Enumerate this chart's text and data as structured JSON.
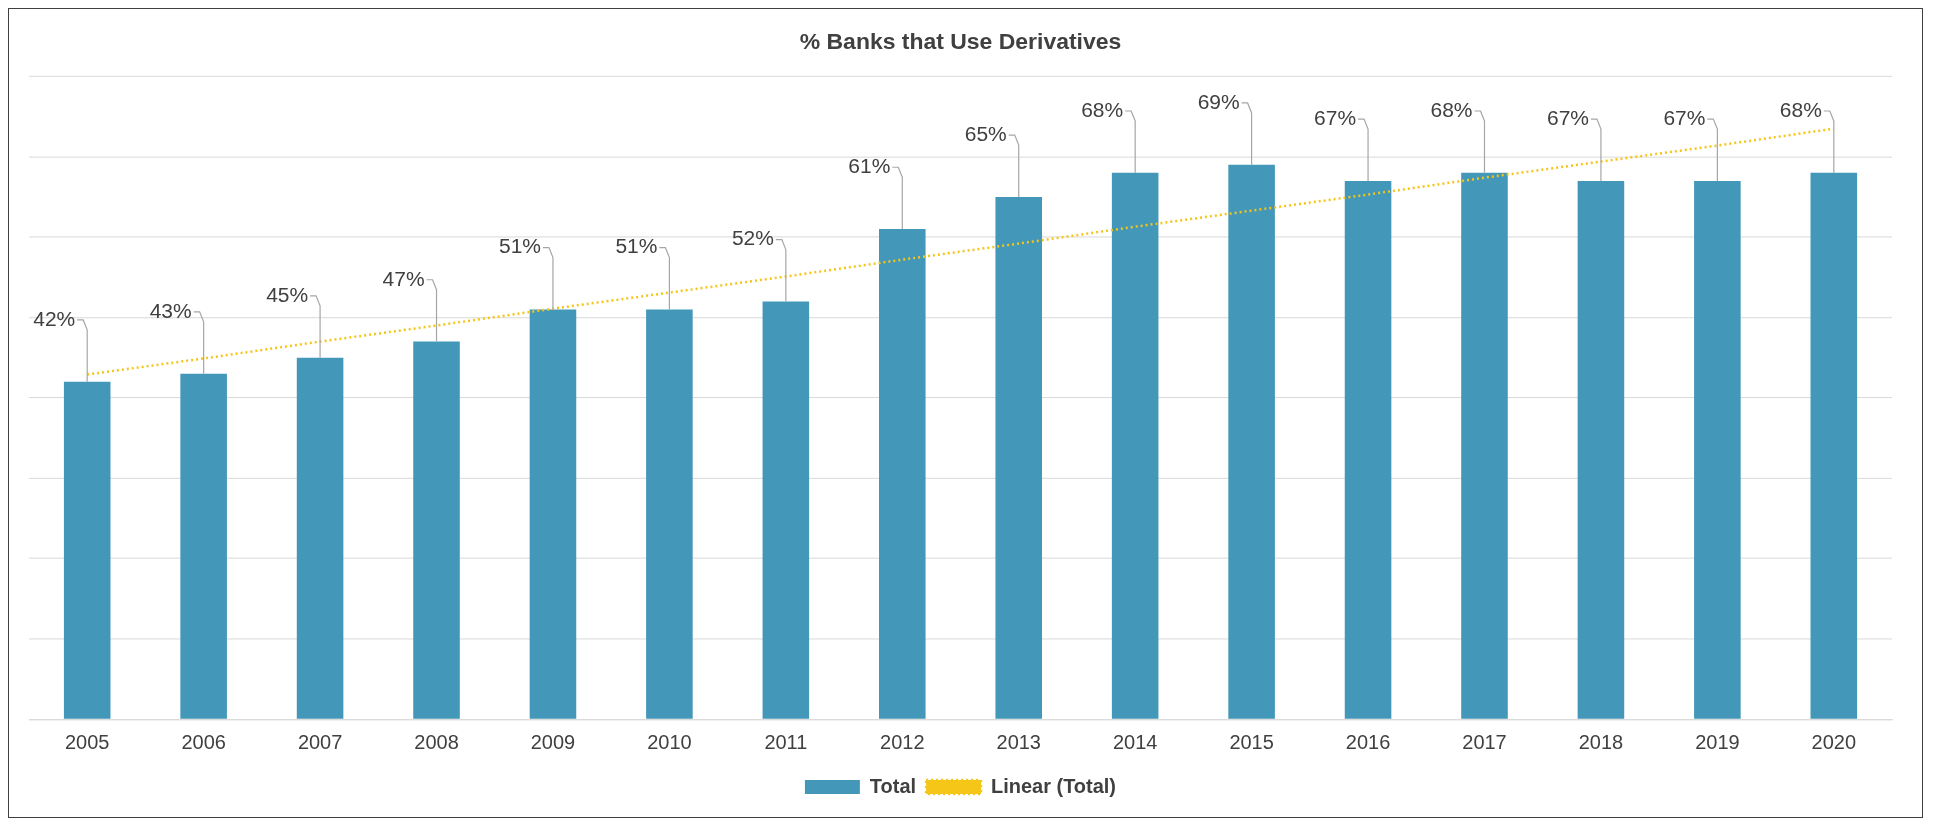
{
  "chart_data": {
    "type": "bar",
    "title": "% Banks that Use Derivatives",
    "categories": [
      "2005",
      "2006",
      "2007",
      "2008",
      "2009",
      "2010",
      "2011",
      "2012",
      "2013",
      "2014",
      "2015",
      "2016",
      "2017",
      "2018",
      "2019",
      "2020"
    ],
    "series": [
      {
        "name": "Total",
        "color": "#4397b8",
        "values": [
          42,
          43,
          45,
          47,
          51,
          51,
          52,
          61,
          65,
          68,
          69,
          67,
          68,
          67,
          67,
          68
        ],
        "value_labels": [
          "42%",
          "43%",
          "45%",
          "47%",
          "51%",
          "51%",
          "52%",
          "61%",
          "65%",
          "68%",
          "69%",
          "67%",
          "68%",
          "67%",
          "67%",
          "68%"
        ]
      },
      {
        "name": "Linear (Total)",
        "type": "line",
        "color": "#f5c518",
        "line_style": "dotted",
        "marker": "none",
        "values": [
          42.9,
          44.9,
          47.0,
          49.0,
          51.1,
          53.1,
          55.1,
          57.2,
          59.2,
          61.3,
          63.3,
          65.3,
          67.4,
          69.4,
          71.4,
          73.5
        ]
      }
    ],
    "ylim": [
      0,
      80
    ],
    "yticks": [
      {
        "value": 0,
        "label": null
      },
      {
        "value": 10,
        "label": null
      },
      {
        "value": 20,
        "label": null
      },
      {
        "value": 30,
        "label": null
      },
      {
        "value": 40,
        "label": null
      },
      {
        "value": 50,
        "label": null
      },
      {
        "value": 60,
        "label": null
      },
      {
        "value": 70,
        "label": null
      },
      {
        "value": 80,
        "label": null
      }
    ],
    "tick_labels": "x",
    "grid": "y",
    "legend": "bottom"
  }
}
